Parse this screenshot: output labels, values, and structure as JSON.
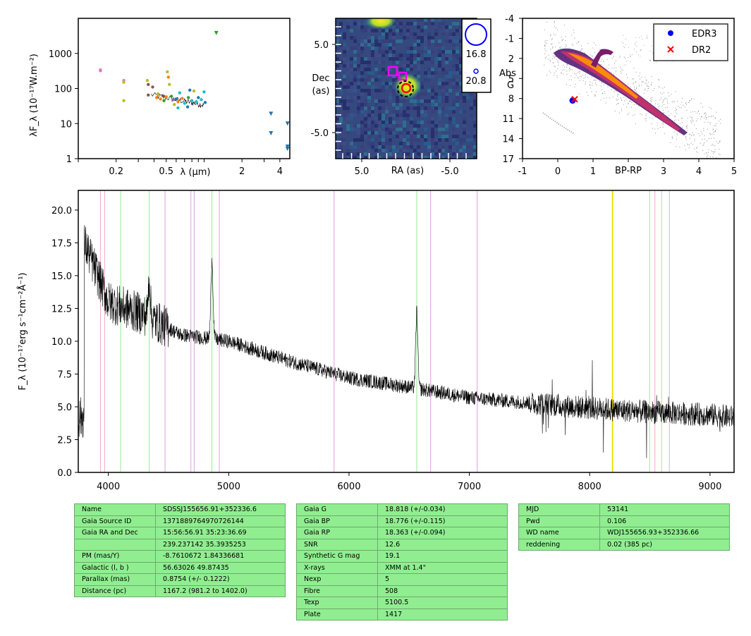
{
  "sed": {
    "ylabel": "λF_λ (10⁻¹⁷W.m⁻²)",
    "xlabel": "λ (μm)",
    "yticks": [
      "1",
      "10",
      "100",
      "1000"
    ],
    "xticks": [
      "0.2",
      "0.5",
      "2",
      "4"
    ],
    "chart_data": {
      "type": "scatter",
      "xlabel": "λ (μm)",
      "ylabel": "λF_λ (10⁻¹⁷W.m⁻²)",
      "xscale": "log",
      "yscale": "log",
      "xlim": [
        0.1,
        4.8
      ],
      "ylim": [
        1,
        10000
      ],
      "points": [
        {
          "x": 0.15,
          "y": 320,
          "c": "#e377c2"
        },
        {
          "x": 0.15,
          "y": 340,
          "c": "#e377c2"
        },
        {
          "x": 0.23,
          "y": 45,
          "c": "#bcbd22"
        },
        {
          "x": 0.23,
          "y": 170,
          "c": "#e377c2"
        },
        {
          "x": 0.23,
          "y": 150,
          "c": "#bcbd22"
        },
        {
          "x": 0.354,
          "y": 170,
          "c": "#bcbd22"
        },
        {
          "x": 0.36,
          "y": 65,
          "c": "#8c564b"
        },
        {
          "x": 0.36,
          "y": 130,
          "c": "#8c564b"
        },
        {
          "x": 0.39,
          "y": 110,
          "c": "#8c564b"
        },
        {
          "x": 0.42,
          "y": 55,
          "c": "#ff7f0e"
        },
        {
          "x": 0.43,
          "y": 70,
          "c": "#bcbd22"
        },
        {
          "x": 0.45,
          "y": 50,
          "c": "#ff7f0e"
        },
        {
          "x": 0.47,
          "y": 62,
          "c": "#8c564b"
        },
        {
          "x": 0.48,
          "y": 45,
          "c": "#2ca02c"
        },
        {
          "x": 0.5,
          "y": 58,
          "c": "#ff7f0e"
        },
        {
          "x": 0.51,
          "y": 300,
          "c": "#bcbd22"
        },
        {
          "x": 0.52,
          "y": 210,
          "c": "#ff7f0e"
        },
        {
          "x": 0.53,
          "y": 130,
          "c": "#bcbd22"
        },
        {
          "x": 0.55,
          "y": 60,
          "c": "#2ca02c"
        },
        {
          "x": 0.57,
          "y": 48,
          "c": "#9467bd"
        },
        {
          "x": 0.6,
          "y": 50,
          "c": "#1f77b4"
        },
        {
          "x": 0.62,
          "y": 42,
          "c": "#ff7f0e"
        },
        {
          "x": 0.64,
          "y": 75,
          "c": "#17becf"
        },
        {
          "x": 0.67,
          "y": 52,
          "c": "#ff7f0e"
        },
        {
          "x": 0.7,
          "y": 38,
          "c": "#17becf"
        },
        {
          "x": 0.75,
          "y": 55,
          "c": "#2ca02c"
        },
        {
          "x": 0.77,
          "y": 90,
          "c": "#1f77b4"
        },
        {
          "x": 0.8,
          "y": 45,
          "c": "#17becf"
        },
        {
          "x": 0.83,
          "y": 85,
          "c": "#bcbd22"
        },
        {
          "x": 0.87,
          "y": 42,
          "c": "#17becf"
        },
        {
          "x": 0.9,
          "y": 55,
          "c": "#1f77b4"
        },
        {
          "x": 0.95,
          "y": 48,
          "c": "#17becf"
        },
        {
          "x": 1.0,
          "y": 80,
          "c": "#17becf"
        },
        {
          "x": 1.02,
          "y": 40,
          "c": "#1f77b4"
        },
        {
          "x": 0.62,
          "y": 28,
          "c": "#17becf"
        },
        {
          "x": 0.74,
          "y": 30,
          "c": "#1f77b4"
        },
        {
          "x": 0.58,
          "y": 35,
          "c": "#bcbd22"
        }
      ],
      "upper_limits": [
        {
          "x": 1.25,
          "y": 3800,
          "c": "#2ca02c"
        },
        {
          "x": 3.4,
          "y": 19,
          "c": "#1f77b4"
        },
        {
          "x": 3.4,
          "y": 5.3,
          "c": "#1f77b4"
        },
        {
          "x": 4.6,
          "y": 10,
          "c": "#1f77b4"
        },
        {
          "x": 4.6,
          "y": 2.2,
          "c": "#1f77b4"
        },
        {
          "x": 4.6,
          "y": 1.9,
          "c": "#1f77b4"
        }
      ]
    }
  },
  "image": {
    "ylabel_1": "Dec",
    "ylabel_2": "(as)",
    "xlabel": "RA (as)",
    "yticks": [
      "5.0",
      "-5.0"
    ],
    "xticks": [
      "5.0",
      "-5.0"
    ],
    "legend": [
      "16.8",
      "20.8"
    ]
  },
  "hr": {
    "ylabel_1": "Abs",
    "ylabel_2": "G",
    "xlabel": "BP-RP",
    "yticks": [
      "-4",
      "-1",
      "2",
      "5",
      "8",
      "11",
      "14",
      "17"
    ],
    "xticks": [
      "-1",
      "0",
      "1",
      "3",
      "4",
      "5"
    ],
    "legend": [
      {
        "label": "EDR3",
        "color": "#0000ff"
      },
      {
        "label": "DR2",
        "color": "#ff0000"
      }
    ],
    "chart_data": {
      "type": "scatter",
      "xlabel": "BP-RP",
      "ylabel": "Abs G",
      "xlim": [
        -1,
        5
      ],
      "ylim": [
        17,
        -4
      ],
      "series": [
        {
          "name": "EDR3",
          "points": [
            [
              0.42,
              8.3
            ]
          ],
          "color": "#0000ff"
        },
        {
          "name": "DR2",
          "points": [
            [
              0.48,
              8.1
            ]
          ],
          "color": "#ff0000"
        }
      ]
    }
  },
  "spectrum": {
    "ylabel": "F_λ (10⁻¹⁷erg s⁻¹cm⁻²Å⁻¹)",
    "xticks": [
      "4000",
      "5000",
      "6000",
      "7000",
      "8000",
      "9000"
    ],
    "yticks": [
      "0.0",
      "2.5",
      "5.0",
      "7.5",
      "10.0",
      "12.5",
      "15.0",
      "17.5",
      "20.0"
    ],
    "chart_data": {
      "type": "line",
      "xlim": [
        3750,
        9200
      ],
      "ylim": [
        0,
        21.5
      ],
      "continuum": [
        {
          "x": 3800,
          "y": 17.5
        },
        {
          "x": 4000,
          "y": 13
        },
        {
          "x": 4300,
          "y": 12
        },
        {
          "x": 4600,
          "y": 10.5
        },
        {
          "x": 5000,
          "y": 10
        },
        {
          "x": 5500,
          "y": 8.5
        },
        {
          "x": 6000,
          "y": 7.2
        },
        {
          "x": 6500,
          "y": 6.5
        },
        {
          "x": 7000,
          "y": 5.7
        },
        {
          "x": 7500,
          "y": 5.3
        },
        {
          "x": 8000,
          "y": 4.9
        },
        {
          "x": 8500,
          "y": 4.6
        },
        {
          "x": 9000,
          "y": 4.4
        },
        {
          "x": 9200,
          "y": 4.2
        }
      ],
      "emission_lines": [
        {
          "x": 4340,
          "y": 14.8
        },
        {
          "x": 4861,
          "y": 16.2
        },
        {
          "x": 6563,
          "y": 12.3
        }
      ],
      "line_markers": [
        {
          "x": 3934,
          "color": "#f4a6c6"
        },
        {
          "x": 3969,
          "color": "#f4a6c6"
        },
        {
          "x": 4102,
          "color": "#90ee90"
        },
        {
          "x": 4340,
          "color": "#90ee90"
        },
        {
          "x": 4471,
          "color": "#dda0dd"
        },
        {
          "x": 4686,
          "color": "#dda0dd"
        },
        {
          "x": 4713,
          "color": "#dda0dd"
        },
        {
          "x": 4861,
          "color": "#90ee90"
        },
        {
          "x": 4922,
          "color": "#dda0dd"
        },
        {
          "x": 5876,
          "color": "#dda0dd"
        },
        {
          "x": 6563,
          "color": "#90ee90"
        },
        {
          "x": 6678,
          "color": "#dda0dd"
        },
        {
          "x": 7065,
          "color": "#dda0dd"
        },
        {
          "x": 8190,
          "color": "#f0e000"
        },
        {
          "x": 8498,
          "color": "#90ee90"
        },
        {
          "x": 8542,
          "color": "#f4a6c6"
        },
        {
          "x": 8598,
          "color": "#90ee90"
        },
        {
          "x": 8662,
          "color": "#f4a6c6"
        }
      ]
    }
  },
  "tables": {
    "t1": [
      [
        "Name",
        "SDSSJ155656.91+352336.6"
      ],
      [
        "Gaia Source ID",
        "1371889764970726144"
      ],
      [
        "Gaia RA and Dec",
        "15:56:56.91    35:23:36.69"
      ],
      [
        "",
        "239.237142    35.3935253"
      ],
      [
        "PM (mas/Y)",
        "-8.7610672    1.84336681"
      ],
      [
        "Galactic (l, b )",
        "56.63026    49.87435"
      ],
      [
        "Parallax (mas)",
        "0.8754 (+/- 0.1222)"
      ],
      [
        "Distance (pc)",
        "1167.2 (981.2 to 1402.0)"
      ]
    ],
    "t2": [
      [
        "Gaia G",
        "18.818 (+/-0.034)"
      ],
      [
        "Gaia BP",
        "18.776 (+/-0.115)"
      ],
      [
        "Gaia RP",
        "18.363 (+/-0.094)"
      ],
      [
        "SNR",
        "12.6"
      ],
      [
        "Synthetic G mag",
        "19.1"
      ],
      [
        "X-rays",
        "XMM at 1.4\""
      ],
      [
        "Nexp",
        "5"
      ],
      [
        "Fibre",
        "508"
      ],
      [
        "Texp",
        "5100.5"
      ],
      [
        "Plate",
        "1417"
      ]
    ],
    "t3": [
      [
        "MJD",
        "53141"
      ],
      [
        "Pwd",
        "0.106"
      ],
      [
        "WD name",
        "WDJ155656.93+352336.66"
      ],
      [
        "reddening",
        "0.02 (385 pc)"
      ]
    ]
  }
}
